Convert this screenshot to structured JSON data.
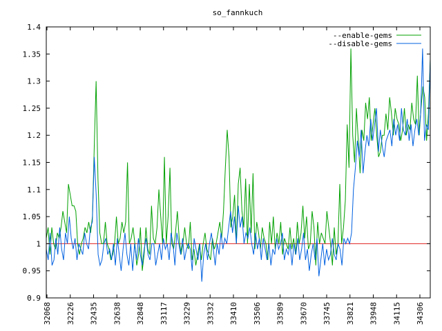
{
  "chart_data": {
    "type": "line",
    "title": "so_fannkuch",
    "xlabel": "",
    "ylabel": "",
    "ylim": [
      0.9,
      1.4
    ],
    "yticks": [
      "0.9",
      "0.95",
      "1",
      "1.05",
      "1.1",
      "1.15",
      "1.2",
      "1.25",
      "1.3",
      "1.35",
      "1.4"
    ],
    "xticks": [
      "32068",
      "32226",
      "32435",
      "32638",
      "32848",
      "33117",
      "33229",
      "33332",
      "33410",
      "33506",
      "33589",
      "33670",
      "33745",
      "33821",
      "33948",
      "34115",
      "34306"
    ],
    "grid": false,
    "legend_position": "top-right",
    "reference_line": 1.0,
    "reference_color": "#e02020",
    "series": [
      {
        "name": "--enable-gems",
        "color": "#00a000",
        "values": [
          1.01,
          1.03,
          0.98,
          1.03,
          1.0,
          0.99,
          1.02,
          1.01,
          1.03,
          1.06,
          1.04,
          1.02,
          1.11,
          1.09,
          1.07,
          1.07,
          1.06,
          1.0,
          0.98,
          1.0,
          1.01,
          1.03,
          1.02,
          1.04,
          1.02,
          1.05,
          1.18,
          1.3,
          1.12,
          1.02,
          1.0,
          1.0,
          1.04,
          1.0,
          0.99,
          0.97,
          0.98,
          1.0,
          1.05,
          1.0,
          1.01,
          1.04,
          1.02,
          1.04,
          1.15,
          1.0,
          1.01,
          1.03,
          1.0,
          0.96,
          0.98,
          1.03,
          0.95,
          0.98,
          1.03,
          0.99,
          0.98,
          1.07,
          1.01,
          1.0,
          1.03,
          1.1,
          1.05,
          1.0,
          1.16,
          1.0,
          1.05,
          1.14,
          1.0,
          0.99,
          1.02,
          1.06,
          1.01,
          0.98,
          1.0,
          1.03,
          1.0,
          0.99,
          1.04,
          0.97,
          0.99,
          0.96,
          0.98,
          1.0,
          0.97,
          1.0,
          1.02,
          0.99,
          0.98,
          0.97,
          1.01,
          0.99,
          1.0,
          1.02,
          1.04,
          1.01,
          1.06,
          1.14,
          1.21,
          1.16,
          1.03,
          1.05,
          1.09,
          1.0,
          1.11,
          1.14,
          1.06,
          1.03,
          1.12,
          1.0,
          1.11,
          1.02,
          1.13,
          0.99,
          1.04,
          1.02,
          0.99,
          1.03,
          1.01,
          1.0,
          0.97,
          1.04,
          1.0,
          1.05,
          0.99,
          1.02,
          1.0,
          1.04,
          0.98,
          1.01,
          1.0,
          0.99,
          1.03,
          0.99,
          1.01,
          0.98,
          1.04,
          1.0,
          1.02,
          1.07,
          1.01,
          1.05,
          0.99,
          1.0,
          1.06,
          1.03,
          0.96,
          1.04,
          1.0,
          1.02,
          1.01,
          1.0,
          1.06,
          1.03,
          1.0,
          0.96,
          1.03,
          0.98,
          1.0,
          1.11,
          1.0,
          1.03,
          1.08,
          1.22,
          1.14,
          1.36,
          1.2,
          1.15,
          1.25,
          1.19,
          1.13,
          1.21,
          1.19,
          1.26,
          1.23,
          1.27,
          1.19,
          1.22,
          1.25,
          1.2,
          1.16,
          1.17,
          1.2,
          1.2,
          1.24,
          1.21,
          1.27,
          1.24,
          1.2,
          1.25,
          1.23,
          1.22,
          1.19,
          1.21,
          1.25,
          1.2,
          1.22,
          1.21,
          1.26,
          1.23,
          1.22,
          1.31,
          1.2,
          1.25,
          1.29,
          1.27,
          1.19,
          1.24,
          1.34
        ]
      },
      {
        "name": "--disable-gems",
        "color": "#0060e0",
        "values": [
          0.99,
          0.97,
          1.02,
          0.96,
          0.97,
          1.01,
          0.98,
          1.03,
          0.99,
          0.97,
          1.02,
          1.0,
          1.05,
          1.01,
          0.99,
          1.01,
          0.97,
          1.0,
          0.99,
          0.98,
          1.02,
          1.0,
          0.99,
          1.03,
          1.04,
          1.16,
          1.09,
          0.98,
          0.96,
          0.97,
          1.0,
          1.01,
          0.98,
          0.99,
          0.97,
          1.0,
          0.96,
          1.01,
          0.98,
          0.95,
          0.99,
          1.02,
          0.98,
          0.96,
          1.0,
          0.95,
          1.0,
          0.97,
          1.01,
          0.98,
          0.96,
          0.99,
          1.01,
          0.98,
          0.97,
          1.0,
          1.0,
          0.96,
          0.98,
          1.0,
          0.97,
          1.01,
          0.99,
          1.0,
          0.97,
          1.02,
          1.0,
          0.96,
          1.02,
          1.0,
          0.98,
          1.01,
          0.97,
          0.99,
          1.0,
          0.99,
          0.95,
          1.01,
          0.99,
          0.97,
          1.0,
          0.93,
          0.98,
          1.0,
          0.97,
          1.0,
          1.02,
          0.99,
          0.96,
          1.0,
          0.98,
          1.02,
          0.99,
          1.01,
          1.0,
          1.03,
          1.06,
          1.02,
          1.05,
          1.0,
          1.07,
          1.03,
          1.05,
          1.0,
          1.02,
          1.01,
          1.03,
          1.0,
          0.98,
          1.02,
          0.99,
          1.01,
          0.97,
          1.01,
          0.99,
          0.97,
          1.0,
          0.96,
          0.99,
          0.98,
          1.01,
          0.99,
          1.0,
          1.02,
          0.97,
          0.99,
          0.98,
          1.0,
          0.96,
          1.0,
          0.98,
          1.01,
          0.97,
          0.99,
          1.02,
          0.97,
          0.99,
          0.95,
          0.98,
          1.0,
          0.97,
          1.01,
          0.94,
          0.97,
          1.0,
          0.96,
          0.99,
          0.97,
          0.98,
          1.01,
          0.98,
          0.97,
          1.0,
          0.99,
          0.96,
          1.01,
          1.0,
          1.01,
          1.0,
          1.02,
          1.1,
          1.14,
          1.19,
          1.16,
          1.21,
          1.13,
          1.17,
          1.2,
          1.18,
          1.23,
          1.19,
          1.22,
          1.25,
          1.17,
          1.21,
          1.18,
          1.16,
          1.19,
          1.2,
          1.21,
          1.18,
          1.23,
          1.2,
          1.22,
          1.19,
          1.25,
          1.21,
          1.2,
          1.23,
          1.19,
          1.22,
          1.18,
          1.21,
          1.23,
          1.2,
          1.24,
          1.36,
          1.19,
          1.22,
          1.21,
          1.34
        ]
      }
    ]
  }
}
